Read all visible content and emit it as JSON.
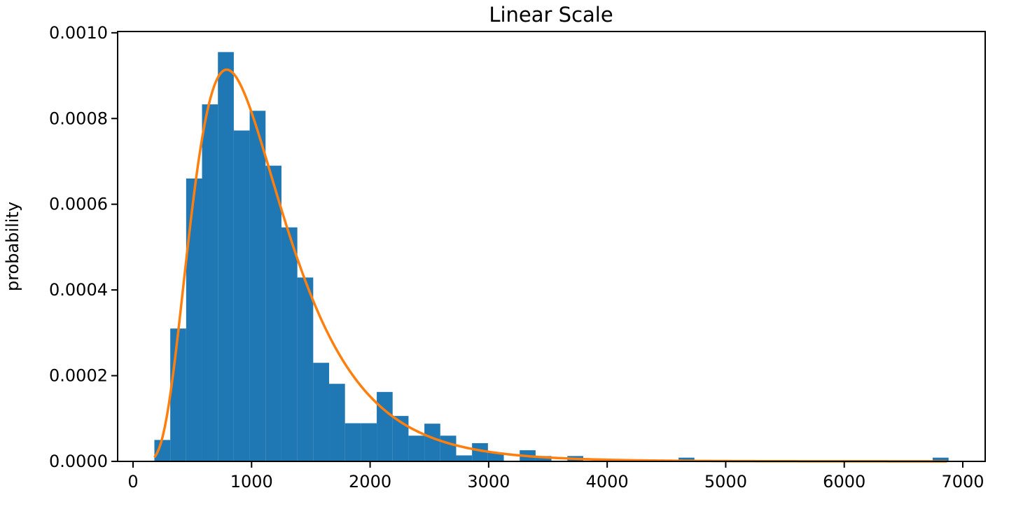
{
  "title": "Linear Scale",
  "ylabel": "probability",
  "xlabel": "",
  "colors": {
    "bars": "#1f77b4",
    "curve": "#ff7f0e",
    "axis": "#000000",
    "text": "#000000",
    "background": "#ffffff"
  },
  "chart_data": {
    "type": "bar",
    "subtype": "histogram_with_fit_curve",
    "title": "Linear Scale",
    "xlabel": "",
    "ylabel": "probability",
    "legend": "none",
    "grid": false,
    "xlim": [
      -130,
      7189
    ],
    "ylim": [
      0,
      0.001003
    ],
    "x_ticks": [
      0,
      1000,
      2000,
      3000,
      4000,
      5000,
      6000,
      7000
    ],
    "x_tick_labels": [
      "0",
      "1000",
      "2000",
      "3000",
      "4000",
      "5000",
      "6000",
      "7000"
    ],
    "y_ticks": [
      0.0,
      0.0002,
      0.0004,
      0.0006,
      0.0008,
      0.001
    ],
    "y_tick_labels": [
      "0.0000",
      "0.0002",
      "0.0004",
      "0.0006",
      "0.0008",
      "0.0010"
    ],
    "histogram": {
      "color": "#1f77b4",
      "bin_start": 180,
      "bin_width": 134,
      "n_bins": 50,
      "heights": [
        5e-05,
        0.00031,
        0.00066,
        0.000833,
        0.000955,
        0.000772,
        0.000818,
        0.00069,
        0.000546,
        0.000429,
        0.00023,
        0.000181,
        8.9e-05,
        8.9e-05,
        0.000162,
        0.000106,
        6e-05,
        8.8e-05,
        6e-05,
        1.4e-05,
        4.25e-05,
        2.07e-05,
        0,
        2.6e-05,
        1.25e-05,
        0,
        1.25e-05,
        0,
        0,
        0,
        0,
        0,
        0,
        8.7e-06,
        0,
        0,
        0,
        0,
        0,
        0,
        0,
        0,
        0,
        0,
        0,
        0,
        0,
        0,
        0,
        8.7e-06
      ]
    },
    "fit_curve": {
      "name": "lognormal-pdf-fit",
      "distribution": "lognormal",
      "mu": 6.912,
      "sigma": 0.49,
      "x_start": 185,
      "x_end": 6860,
      "peak_x": 790,
      "peak_y": 0.000914,
      "color": "#ff7f0e",
      "line_width": 3.5
    }
  }
}
